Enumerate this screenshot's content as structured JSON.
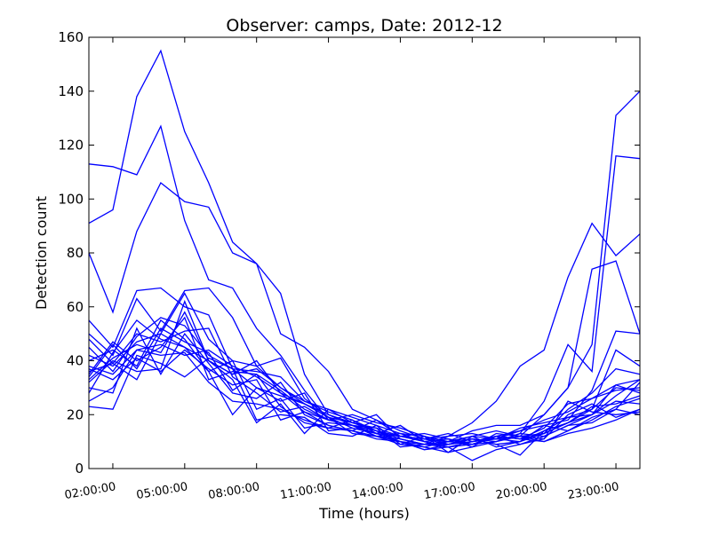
{
  "chart_data": {
    "type": "line",
    "title": "Observer: camps, Date: 2012-12",
    "xlabel": "Time (hours)",
    "ylabel": "Detection count",
    "xlim": [
      1,
      24
    ],
    "ylim": [
      0,
      160
    ],
    "xtick_values": [
      2,
      5,
      8,
      11,
      14,
      17,
      20,
      23
    ],
    "xtick_labels": [
      "02:00:00",
      "05:00:00",
      "08:00:00",
      "11:00:00",
      "14:00:00",
      "17:00:00",
      "20:00:00",
      "23:00:00"
    ],
    "ytick_values": [
      0,
      20,
      40,
      60,
      80,
      100,
      120,
      140,
      160
    ],
    "ytick_labels": [
      "0",
      "20",
      "40",
      "60",
      "80",
      "100",
      "120",
      "140",
      "160"
    ],
    "line_color": "#0000ff",
    "grid": false,
    "x": [
      1,
      2,
      3,
      4,
      5,
      6,
      7,
      8,
      9,
      10,
      11,
      12,
      13,
      14,
      15,
      16,
      17,
      18,
      19,
      20,
      21,
      22,
      23,
      24
    ],
    "series": [
      {
        "values": [
          113,
          112,
          109,
          127,
          92,
          70,
          67,
          52,
          42,
          29,
          18,
          16,
          14,
          10,
          9,
          8,
          9,
          12,
          11,
          13,
          22,
          28,
          37,
          35
        ]
      },
      {
        "values": [
          91,
          96,
          138,
          155,
          125,
          106,
          84,
          76,
          50,
          45,
          36,
          22,
          18,
          14,
          11,
          10,
          12,
          14,
          12,
          20,
          30,
          46,
          131,
          140
        ]
      },
      {
        "values": [
          80,
          58,
          88,
          106,
          99,
          97,
          80,
          76,
          65,
          35,
          20,
          16,
          12,
          11,
          9,
          9,
          11,
          10,
          13,
          25,
          46,
          36,
          116,
          115
        ]
      },
      {
        "values": [
          55,
          45,
          66,
          67,
          60,
          57,
          37,
          30,
          27,
          24,
          20,
          17,
          15,
          12,
          11,
          12,
          17,
          25,
          38,
          44,
          71,
          91,
          79,
          87
        ]
      },
      {
        "values": [
          50,
          42,
          63,
          51,
          66,
          67,
          56,
          38,
          30,
          25,
          22,
          19,
          16,
          13,
          12,
          10,
          14,
          16,
          16,
          20,
          30,
          74,
          77,
          50
        ]
      },
      {
        "values": [
          45,
          36,
          49,
          56,
          53,
          42,
          37,
          36,
          34,
          25,
          21,
          18,
          14,
          12,
          10,
          11,
          9,
          12,
          14,
          16,
          18,
          29,
          51,
          50
        ]
      },
      {
        "values": [
          42,
          38,
          47,
          50,
          45,
          40,
          35,
          37,
          30,
          24,
          19,
          17,
          14,
          11,
          9,
          10,
          12,
          11,
          10,
          14,
          17,
          22,
          44,
          38
        ]
      },
      {
        "values": [
          38,
          35,
          44,
          46,
          42,
          44,
          38,
          34,
          28,
          21,
          18,
          16,
          13,
          12,
          11,
          13,
          10,
          11,
          15,
          17,
          19,
          20,
          31,
          33
        ]
      },
      {
        "values": [
          35,
          47,
          40,
          45,
          56,
          33,
          36,
          35,
          29,
          22,
          18,
          16,
          12,
          10,
          8,
          10,
          9,
          12,
          11,
          15,
          24,
          26,
          29,
          30
        ]
      },
      {
        "values": [
          32,
          40,
          36,
          37,
          62,
          40,
          35,
          40,
          28,
          24,
          19,
          15,
          13,
          10,
          7,
          9,
          10,
          12,
          9,
          11,
          25,
          21,
          20,
          21
        ]
      },
      {
        "values": [
          30,
          28,
          52,
          35,
          50,
          39,
          28,
          26,
          32,
          20,
          16,
          14,
          12,
          9,
          8,
          6,
          8,
          10,
          12,
          13,
          17,
          23,
          24,
          27
        ]
      },
      {
        "values": [
          28,
          43,
          55,
          48,
          45,
          36,
          20,
          30,
          25,
          28,
          14,
          15,
          13,
          12,
          11,
          9,
          10,
          11,
          12,
          10,
          14,
          19,
          22,
          32
        ]
      },
      {
        "values": [
          25,
          30,
          44,
          42,
          43,
          32,
          25,
          24,
          22,
          18,
          15,
          14,
          11,
          10,
          7,
          8,
          3,
          7,
          9,
          12,
          16,
          20,
          27,
          33
        ]
      },
      {
        "values": [
          23,
          22,
          42,
          39,
          34,
          41,
          37,
          18,
          20,
          19,
          13,
          12,
          16,
          9,
          12,
          6,
          12,
          8,
          10,
          16,
          14,
          18,
          23,
          26
        ]
      },
      {
        "values": [
          36,
          39,
          33,
          50,
          65,
          48,
          40,
          22,
          26,
          15,
          17,
          16,
          15,
          8,
          9,
          10,
          11,
          9,
          5,
          14,
          19,
          22,
          30,
          29
        ]
      },
      {
        "values": [
          40,
          44,
          38,
          55,
          48,
          36,
          40,
          38,
          41,
          26,
          19,
          13,
          12,
          13,
          10,
          11,
          8,
          13,
          12,
          11,
          20,
          24,
          19,
          22
        ]
      },
      {
        "values": [
          33,
          41,
          46,
          43,
          58,
          40,
          33,
          17,
          24,
          13,
          22,
          17,
          20,
          11,
          9,
          12,
          13,
          11,
          14,
          18,
          21,
          26,
          31,
          28
        ]
      },
      {
        "values": [
          48,
          39,
          50,
          47,
          51,
          52,
          34,
          28,
          21,
          23,
          18,
          20,
          17,
          15,
          12,
          9,
          11,
          9,
          10,
          13,
          17,
          20,
          25,
          24
        ]
      },
      {
        "values": [
          37,
          33,
          41,
          36,
          44,
          37,
          31,
          33,
          18,
          21,
          16,
          14,
          18,
          12,
          13,
          11,
          9,
          10,
          13,
          12,
          16,
          17,
          22,
          20
        ]
      },
      {
        "values": [
          34,
          46,
          37,
          52,
          47,
          43,
          29,
          35,
          23,
          17,
          15,
          18,
          13,
          16,
          10,
          8,
          10,
          12,
          11,
          10,
          13,
          15,
          18,
          22
        ]
      }
    ]
  }
}
